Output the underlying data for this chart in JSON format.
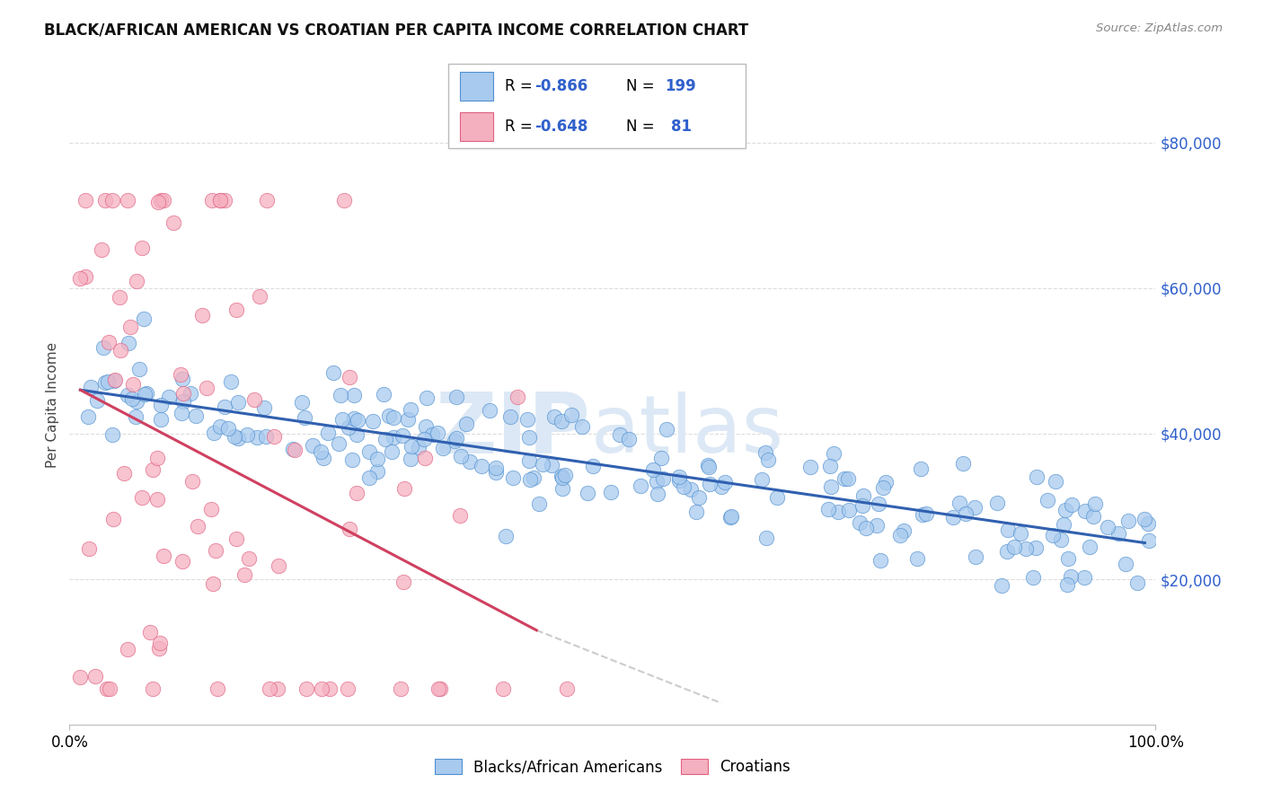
{
  "title": "BLACK/AFRICAN AMERICAN VS CROATIAN PER CAPITA INCOME CORRELATION CHART",
  "source": "Source: ZipAtlas.com",
  "ylabel": "Per Capita Income",
  "blue_label": "Blacks/African Americans",
  "pink_label": "Croatians",
  "blue_fill_color": "#A8CAEE",
  "pink_fill_color": "#F5B0C0",
  "blue_edge_color": "#5090D0",
  "pink_edge_color": "#E06080",
  "blue_trend_color": "#3060B0",
  "pink_trend_color": "#D04060",
  "dash_color": "#CCCCCC",
  "watermark_color": "#DCE8F5",
  "title_color": "#111111",
  "source_color": "#888888",
  "ylabel_color": "#444444",
  "ytick_color": "#3060CC",
  "grid_color": "#DDDDDD",
  "legend_border_color": "#BBBBBB",
  "legend_text_color": "#3060CC",
  "xlim": [
    0.0,
    1.0
  ],
  "ylim": [
    0,
    88000
  ],
  "ytick_positions": [
    20000,
    40000,
    60000,
    80000
  ],
  "ytick_labels": [
    "$20,000",
    "$40,000",
    "$60,000",
    "$80,000"
  ],
  "blue_trend_x0": 0.01,
  "blue_trend_x1": 0.99,
  "blue_trend_y0": 46000,
  "blue_trend_y1": 25000,
  "pink_trend_solid_x0": 0.01,
  "pink_trend_solid_x1": 0.43,
  "pink_trend_solid_y0": 46000,
  "pink_trend_solid_y1": 13000,
  "pink_trend_dash_x0": 0.43,
  "pink_trend_dash_x1": 0.6,
  "pink_trend_dash_y0": 13000,
  "pink_trend_dash_y1": 3000,
  "seed": 77
}
